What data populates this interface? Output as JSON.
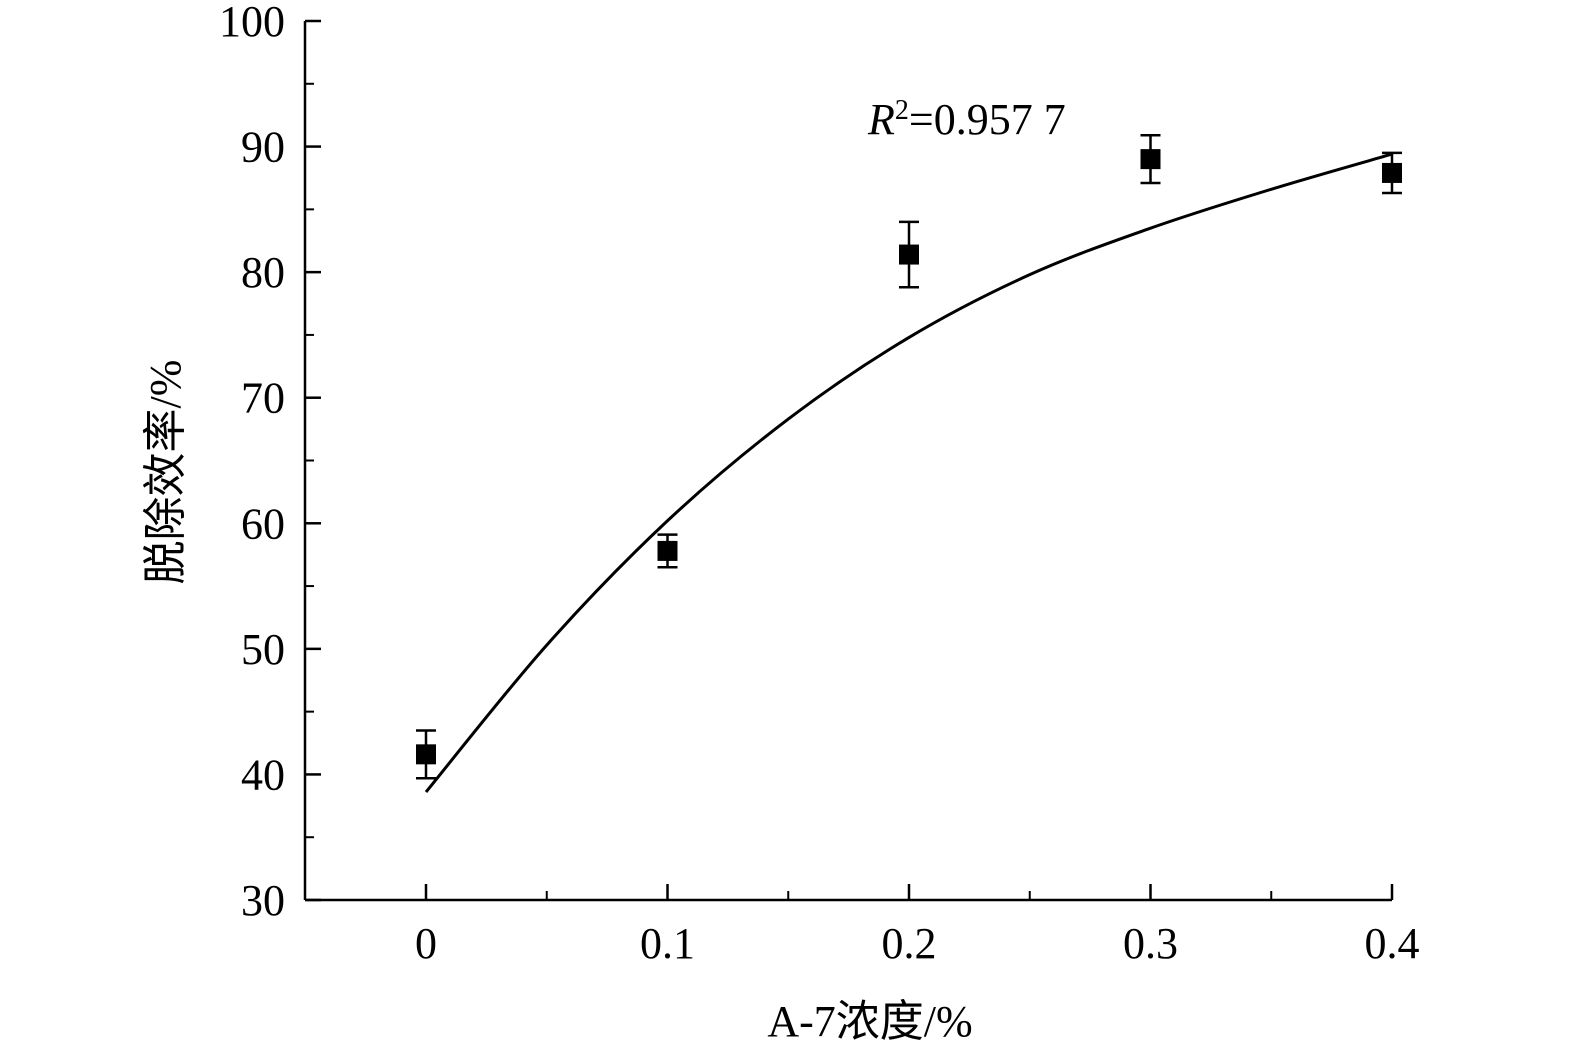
{
  "chart_data": {
    "type": "scatter",
    "xlabel": "A-7浓度/%",
    "ylabel": "脱除效率/%",
    "xlim": [
      -0.05,
      0.4
    ],
    "ylim": [
      30,
      100
    ],
    "x_ticks": [
      "0",
      "0.1",
      "0.2",
      "0.3",
      "0.4"
    ],
    "y_ticks": [
      "30",
      "40",
      "50",
      "60",
      "70",
      "80",
      "90",
      "100"
    ],
    "grid": false,
    "series": [
      {
        "marker": "square",
        "color": "#000000",
        "points": [
          {
            "x": 0.0,
            "y": 41.6,
            "err": 1.9
          },
          {
            "x": 0.1,
            "y": 57.8,
            "err": 1.3
          },
          {
            "x": 0.2,
            "y": 81.4,
            "err": 2.6
          },
          {
            "x": 0.3,
            "y": 89.0,
            "err": 1.9
          },
          {
            "x": 0.4,
            "y": 87.9,
            "err": 1.6
          }
        ]
      }
    ],
    "fit_curve": {
      "x": [
        0.0,
        0.05,
        0.1,
        0.15,
        0.2,
        0.25,
        0.3,
        0.35,
        0.4
      ],
      "y": [
        38.6,
        50.3,
        60.2,
        68.3,
        74.8,
        79.8,
        83.5,
        86.6,
        89.4
      ]
    },
    "annotation": {
      "prefix": "R",
      "superscript": "2",
      "text": "=0.957 7"
    }
  }
}
